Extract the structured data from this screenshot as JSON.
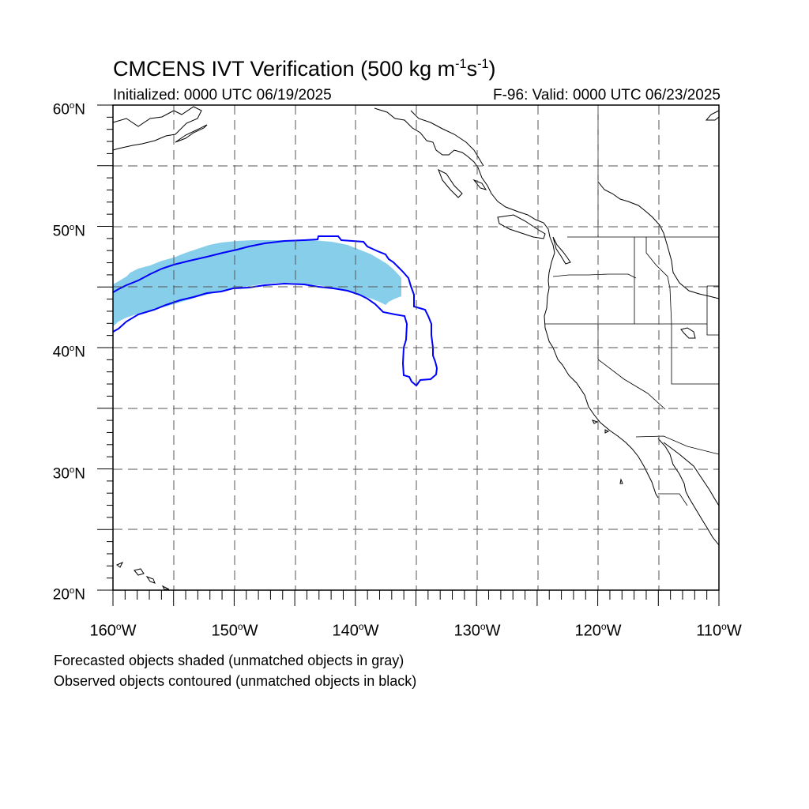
{
  "title_main": "CMCENS IVT Verification (500 kg m",
  "title_exp1": "-1",
  "title_mid": "s",
  "title_exp2": "-1",
  "title_end": ")",
  "initialized": "Initialized: 0000 UTC 06/19/2025",
  "valid": "F-96: Valid: 0000 UTC 06/23/2025",
  "lat_ticks": [
    "60",
    "50",
    "40",
    "30",
    "20"
  ],
  "lat_suffix": "N",
  "lon_ticks": [
    "160",
    "150",
    "140",
    "130",
    "120",
    "110"
  ],
  "lon_suffix": "W",
  "degree_symbol": "o",
  "footnote_forecast": "Forecasted objects shaded (unmatched objects in gray)",
  "footnote_observed": "Observed objects contoured (unmatched objects in black)",
  "colors": {
    "forecast_fill": "#87ceeb",
    "observed_contour": "#0000ff",
    "coast": "#000000",
    "grid": "#555555"
  },
  "map_extent": {
    "lon": [
      -160,
      -110
    ],
    "lat": [
      20,
      60
    ]
  }
}
